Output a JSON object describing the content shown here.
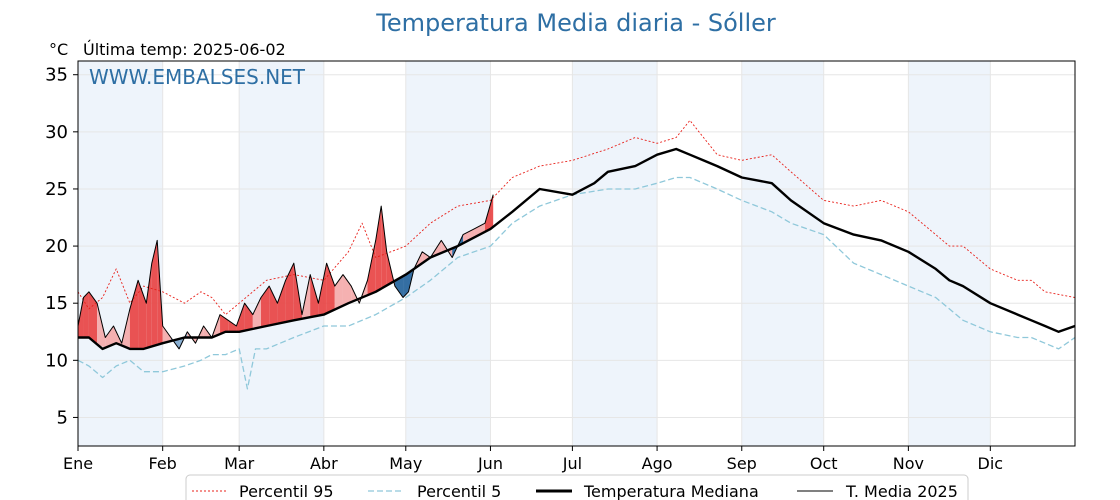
{
  "chart_data": {
    "type": "line",
    "title": "Temperatura Media diaria - Sóller",
    "unit": "°C",
    "last_temp": "Última temp: 2025-06-02",
    "watermark": "WWW.EMBALSES.NET",
    "xlim": [
      1,
      366
    ],
    "ylim": [
      2.5,
      36.2
    ],
    "yticks": [
      5,
      10,
      15,
      20,
      25,
      30,
      35
    ],
    "months": [
      "Ene",
      "Feb",
      "Mar",
      "Abr",
      "May",
      "Jun",
      "Jul",
      "Ago",
      "Sep",
      "Oct",
      "Nov",
      "Dic"
    ],
    "month_start_days": [
      1,
      32,
      60,
      91,
      121,
      152,
      182,
      213,
      244,
      274,
      305,
      335
    ],
    "shaded_months": [
      0,
      2,
      4,
      6,
      8,
      10
    ],
    "grid": true,
    "legend_position": "bottom",
    "colors": {
      "p95": "#e8201a",
      "p5": "#8fc8da",
      "median": "#000000",
      "year": "#000000",
      "above": "#e84040",
      "above_light": "#f4a8a8",
      "below": "#1f5f99",
      "below_light": "#7ba5cc",
      "shade": "#eef4fb",
      "title": "#2e6fa4"
    },
    "series": [
      {
        "name": "Percentil 95",
        "key": "p95",
        "x": [
          1,
          5,
          10,
          15,
          20,
          25,
          32,
          40,
          46,
          50,
          55,
          60,
          70,
          80,
          91,
          100,
          105,
          110,
          121,
          130,
          140,
          152,
          160,
          170,
          182,
          195,
          205,
          213,
          220,
          225,
          230,
          235,
          244,
          255,
          262,
          274,
          285,
          295,
          305,
          315,
          320,
          325,
          335,
          345,
          350,
          355,
          366
        ],
        "y": [
          16,
          14.5,
          15.5,
          18,
          15,
          16.5,
          16,
          15,
          16,
          15.5,
          14,
          15,
          17,
          17.5,
          17,
          19.5,
          22,
          19,
          20,
          22,
          23.5,
          24,
          26,
          27,
          27.5,
          28.5,
          29.5,
          29,
          29.5,
          31,
          29.5,
          28,
          27.5,
          28,
          26.5,
          24,
          23.5,
          24,
          23,
          21,
          20,
          20,
          18,
          17,
          17,
          16,
          15.5
        ]
      },
      {
        "name": "Percentil 5",
        "key": "p5",
        "x": [
          1,
          5,
          10,
          15,
          20,
          25,
          32,
          40,
          46,
          50,
          55,
          60,
          63,
          66,
          70,
          80,
          91,
          100,
          110,
          121,
          130,
          140,
          152,
          160,
          170,
          182,
          195,
          205,
          213,
          220,
          225,
          230,
          235,
          244,
          255,
          262,
          274,
          285,
          295,
          305,
          315,
          320,
          325,
          335,
          345,
          350,
          355,
          360,
          366
        ],
        "y": [
          10,
          9.5,
          8.5,
          9.5,
          10,
          9,
          9,
          9.5,
          10,
          10.5,
          10.5,
          11,
          7.5,
          11,
          11,
          12,
          13,
          13,
          14,
          15.5,
          17,
          19,
          20,
          22,
          23.5,
          24.5,
          25,
          25,
          25.5,
          26,
          26,
          25.5,
          25,
          24,
          23,
          22,
          21,
          18.5,
          17.5,
          16.5,
          15.5,
          14.5,
          13.5,
          12.5,
          12,
          12,
          11.5,
          11,
          12
        ]
      },
      {
        "name": "Temperatura Mediana",
        "key": "median",
        "x": [
          1,
          5,
          10,
          15,
          20,
          25,
          32,
          40,
          46,
          50,
          55,
          60,
          70,
          80,
          91,
          100,
          110,
          121,
          130,
          140,
          152,
          160,
          170,
          182,
          190,
          195,
          205,
          213,
          220,
          225,
          230,
          235,
          244,
          255,
          262,
          274,
          285,
          295,
          305,
          315,
          320,
          325,
          335,
          345,
          350,
          355,
          360,
          366
        ],
        "y": [
          12,
          12,
          11,
          11.5,
          11,
          11,
          11.5,
          12,
          12,
          12,
          12.5,
          12.5,
          13,
          13.5,
          14,
          15,
          16,
          17.5,
          19,
          20,
          21.5,
          23,
          25,
          24.5,
          25.5,
          26.5,
          27,
          28,
          28.5,
          28,
          27.5,
          27,
          26,
          25.5,
          24,
          22,
          21,
          20.5,
          19.5,
          18,
          17,
          16.5,
          15,
          14,
          13.5,
          13,
          12.5,
          13
        ]
      },
      {
        "name": "T. Media 2025",
        "key": "year",
        "x": [
          1,
          3,
          5,
          8,
          11,
          14,
          17,
          20,
          23,
          26,
          28,
          30,
          32,
          35,
          38,
          41,
          44,
          47,
          50,
          53,
          56,
          59,
          62,
          65,
          68,
          71,
          74,
          77,
          80,
          83,
          86,
          89,
          92,
          95,
          98,
          101,
          104,
          107,
          110,
          112,
          114,
          117,
          120,
          122,
          124,
          127,
          130,
          134,
          138,
          142,
          146,
          150,
          153
        ],
        "y": [
          13,
          15.5,
          16,
          15,
          12,
          13,
          11.5,
          14.5,
          17,
          15,
          18.5,
          20.5,
          13,
          12,
          11,
          12.5,
          11.5,
          13,
          12,
          14,
          13.5,
          13,
          15,
          14,
          15.5,
          16.5,
          15,
          17,
          18.5,
          14,
          17.5,
          15,
          18.5,
          16.5,
          17.5,
          16.5,
          15,
          17,
          20.5,
          23.5,
          19.5,
          16.5,
          15.5,
          16,
          18,
          19.5,
          19,
          20.5,
          19,
          21,
          21.5,
          22,
          24.5
        ]
      }
    ],
    "legend": [
      "Percentil 95",
      "Percentil 5",
      "Temperatura Mediana",
      "T. Media 2025"
    ]
  }
}
